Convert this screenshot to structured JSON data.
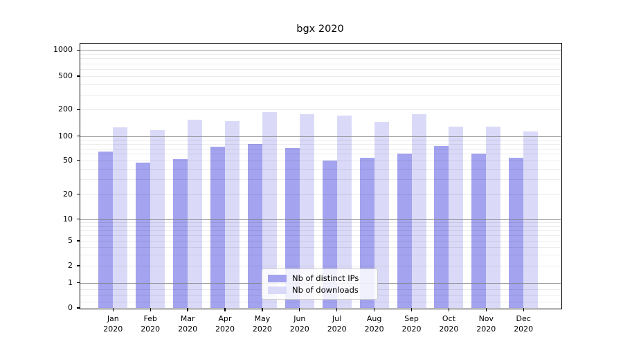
{
  "chart_data": {
    "type": "bar",
    "title": "bgx 2020",
    "categories": [
      "Jan",
      "Feb",
      "Mar",
      "Apr",
      "May",
      "Jun",
      "Jul",
      "Aug",
      "Sep",
      "Oct",
      "Nov",
      "Dec"
    ],
    "category_year": "2020",
    "series": [
      {
        "name": "Nb of distinct IPs",
        "color": "#a3a3ef",
        "values": [
          64,
          47,
          52,
          74,
          80,
          71,
          50,
          54,
          60,
          75,
          61,
          54
        ]
      },
      {
        "name": "Nb of downloads",
        "color": "#dadaf8",
        "values": [
          126,
          116,
          154,
          148,
          186,
          178,
          171,
          145,
          176,
          128,
          128,
          113
        ]
      }
    ],
    "xlabel": "",
    "ylabel": "",
    "yscale": "symlog",
    "yticks": [
      0,
      1,
      2,
      5,
      10,
      20,
      50,
      100,
      200,
      500,
      1000
    ],
    "ylim": [
      0,
      1200
    ],
    "grid": true,
    "legend_position": "lower center"
  }
}
